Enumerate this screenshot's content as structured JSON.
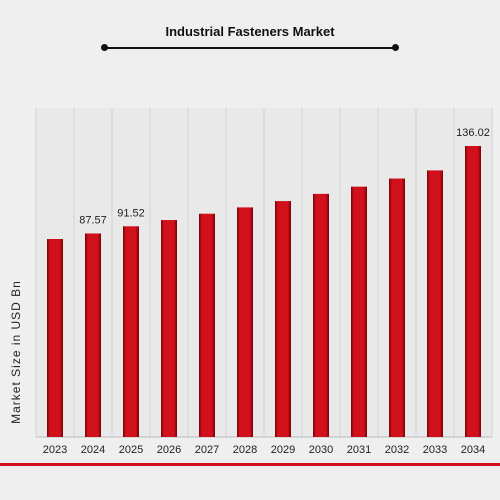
{
  "chart_data": {
    "type": "bar",
    "title": "Industrial Fasteners Market",
    "ylabel": "Market Size in USD Bn",
    "xlabel": "",
    "categories": [
      "2023",
      "2024",
      "2025",
      "2026",
      "2027",
      "2028",
      "2029",
      "2030",
      "2031",
      "2032",
      "2033",
      "2034"
    ],
    "values": [
      84.5,
      87.57,
      91.52,
      95.0,
      98.5,
      102.0,
      105.5,
      109.5,
      113.5,
      118.0,
      122.5,
      136.02
    ],
    "data_labels": [
      "",
      "87.57",
      "91.52",
      "",
      "",
      "",
      "",
      "",
      "",
      "",
      "",
      "136.02"
    ],
    "grid": "vertical",
    "legend": "none",
    "bar_color": "#d0101a",
    "bar_edge_color": "#7a0008"
  }
}
